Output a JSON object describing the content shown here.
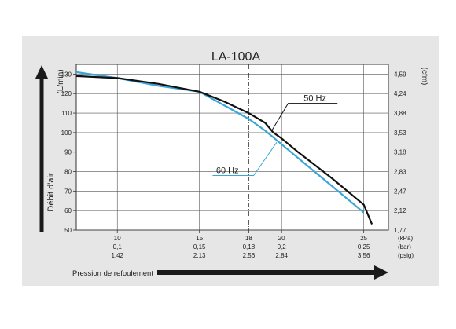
{
  "chart_data": {
    "type": "line",
    "title": "LA-100A",
    "xlabel": "Pression de refoulement",
    "ylabel_left": "Débit d'air",
    "unit_left": "(L/min)",
    "unit_right": "(cfm)",
    "xlim": [
      7.5,
      26.5
    ],
    "ylim": [
      50,
      135
    ],
    "grid": true,
    "y_ticks": [
      "50",
      "60",
      "70",
      "80",
      "90",
      "100",
      "110",
      "120",
      "130"
    ],
    "y_ticks_right": [
      "1,77",
      "2,12",
      "2,47",
      "2,83",
      "3,18",
      "3,53",
      "3,88",
      "4,24",
      "4,59"
    ],
    "x_ticks": [
      {
        "x": 10,
        "kpa": "10",
        "bar": "0,1",
        "psig": "1,42"
      },
      {
        "x": 15,
        "kpa": "15",
        "bar": "0,15",
        "psig": "2,13"
      },
      {
        "x": 18,
        "kpa": "18",
        "bar": "0,18",
        "psig": "2,56"
      },
      {
        "x": 20,
        "kpa": "20",
        "bar": "0,2",
        "psig": "2,84"
      },
      {
        "x": 25,
        "kpa": "25",
        "bar": "0,25",
        "psig": "3,56"
      }
    ],
    "x_units": [
      "(kPa)",
      "(bar)",
      "(psig)"
    ],
    "reference_line_x": 18,
    "series": [
      {
        "name": "50 Hz",
        "color": "#111111",
        "x": [
          7.5,
          10,
          12.5,
          15,
          16.5,
          18,
          19,
          19.5,
          20,
          21,
          23,
          25,
          25.5
        ],
        "y": [
          129,
          128,
          125,
          121,
          116,
          110,
          105,
          100,
          97,
          90,
          77,
          63,
          53
        ]
      },
      {
        "name": "60 Hz",
        "color": "#3aa6d8",
        "x": [
          7.5,
          10,
          12.5,
          15,
          16.5,
          18,
          19,
          20,
          21,
          23,
          25
        ],
        "y": [
          131,
          128,
          124,
          121,
          114,
          107,
          101,
          94,
          87,
          73,
          59
        ]
      }
    ]
  }
}
